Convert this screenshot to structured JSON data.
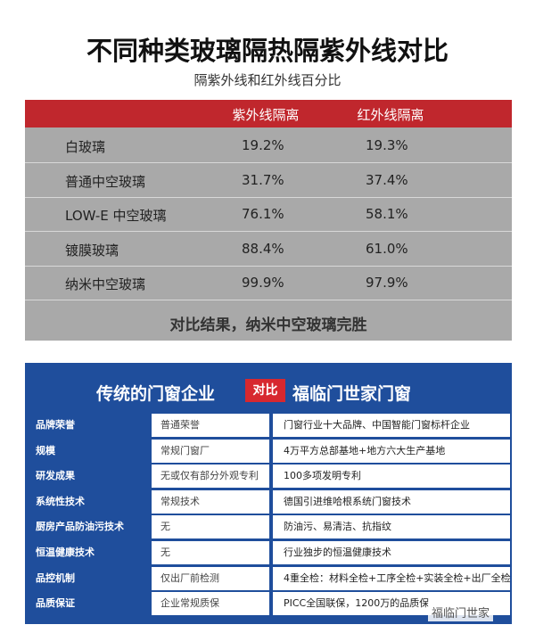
{
  "title": "不同种类玻璃隔热隔紫外线对比",
  "subtitle": "隔紫外线和红外线百分比",
  "table1": {
    "header": [
      null,
      "紫外线隔离",
      "红外线隔离"
    ],
    "rows": [
      [
        "白玻璃",
        "19.2%",
        "19.3%"
      ],
      [
        "普通中空玻璃",
        "31.7%",
        "37.4%"
      ],
      [
        "LOW-E 中空玻璃",
        "76.1%",
        "58.1%"
      ],
      [
        "镀膜玻璃",
        "88.4%",
        "61.0%"
      ],
      [
        "纳米中空玻璃",
        "99.9%",
        "97.9%"
      ]
    ],
    "conclusion": "对比结果，纳米中空玻璃完胜"
  },
  "table2": {
    "left_title": "传统的门窗企业",
    "versus": "对比",
    "right_title": "福临门世家门窗",
    "rows": [
      [
        "品牌荣誉",
        "普通荣誉",
        "门窗行业十大品牌、中国智能门窗标杆企业"
      ],
      [
        "规模",
        "常规门窗厂",
        "4万平方总部基地+地方六大生产基地"
      ],
      [
        "研发成果",
        "无或仅有部分外观专利",
        "100多项发明专利"
      ],
      [
        "系统性技术",
        "常规技术",
        "德国引进维哈根系统门窗技术"
      ],
      [
        "厨房产品防油污技术",
        "无",
        "防油污、易清洁、抗指纹"
      ],
      [
        "恒温健康技术",
        "无",
        "行业独步的恒温健康技术"
      ],
      [
        "品控机制",
        "仅出厂前检测",
        "4重全检：材料全检+工序全检+实装全检+出厂全检"
      ],
      [
        "品质保证",
        "企业常规质保",
        "PICC全国联保，1200万的品质保"
      ]
    ]
  },
  "watermark": "福临门世家"
}
